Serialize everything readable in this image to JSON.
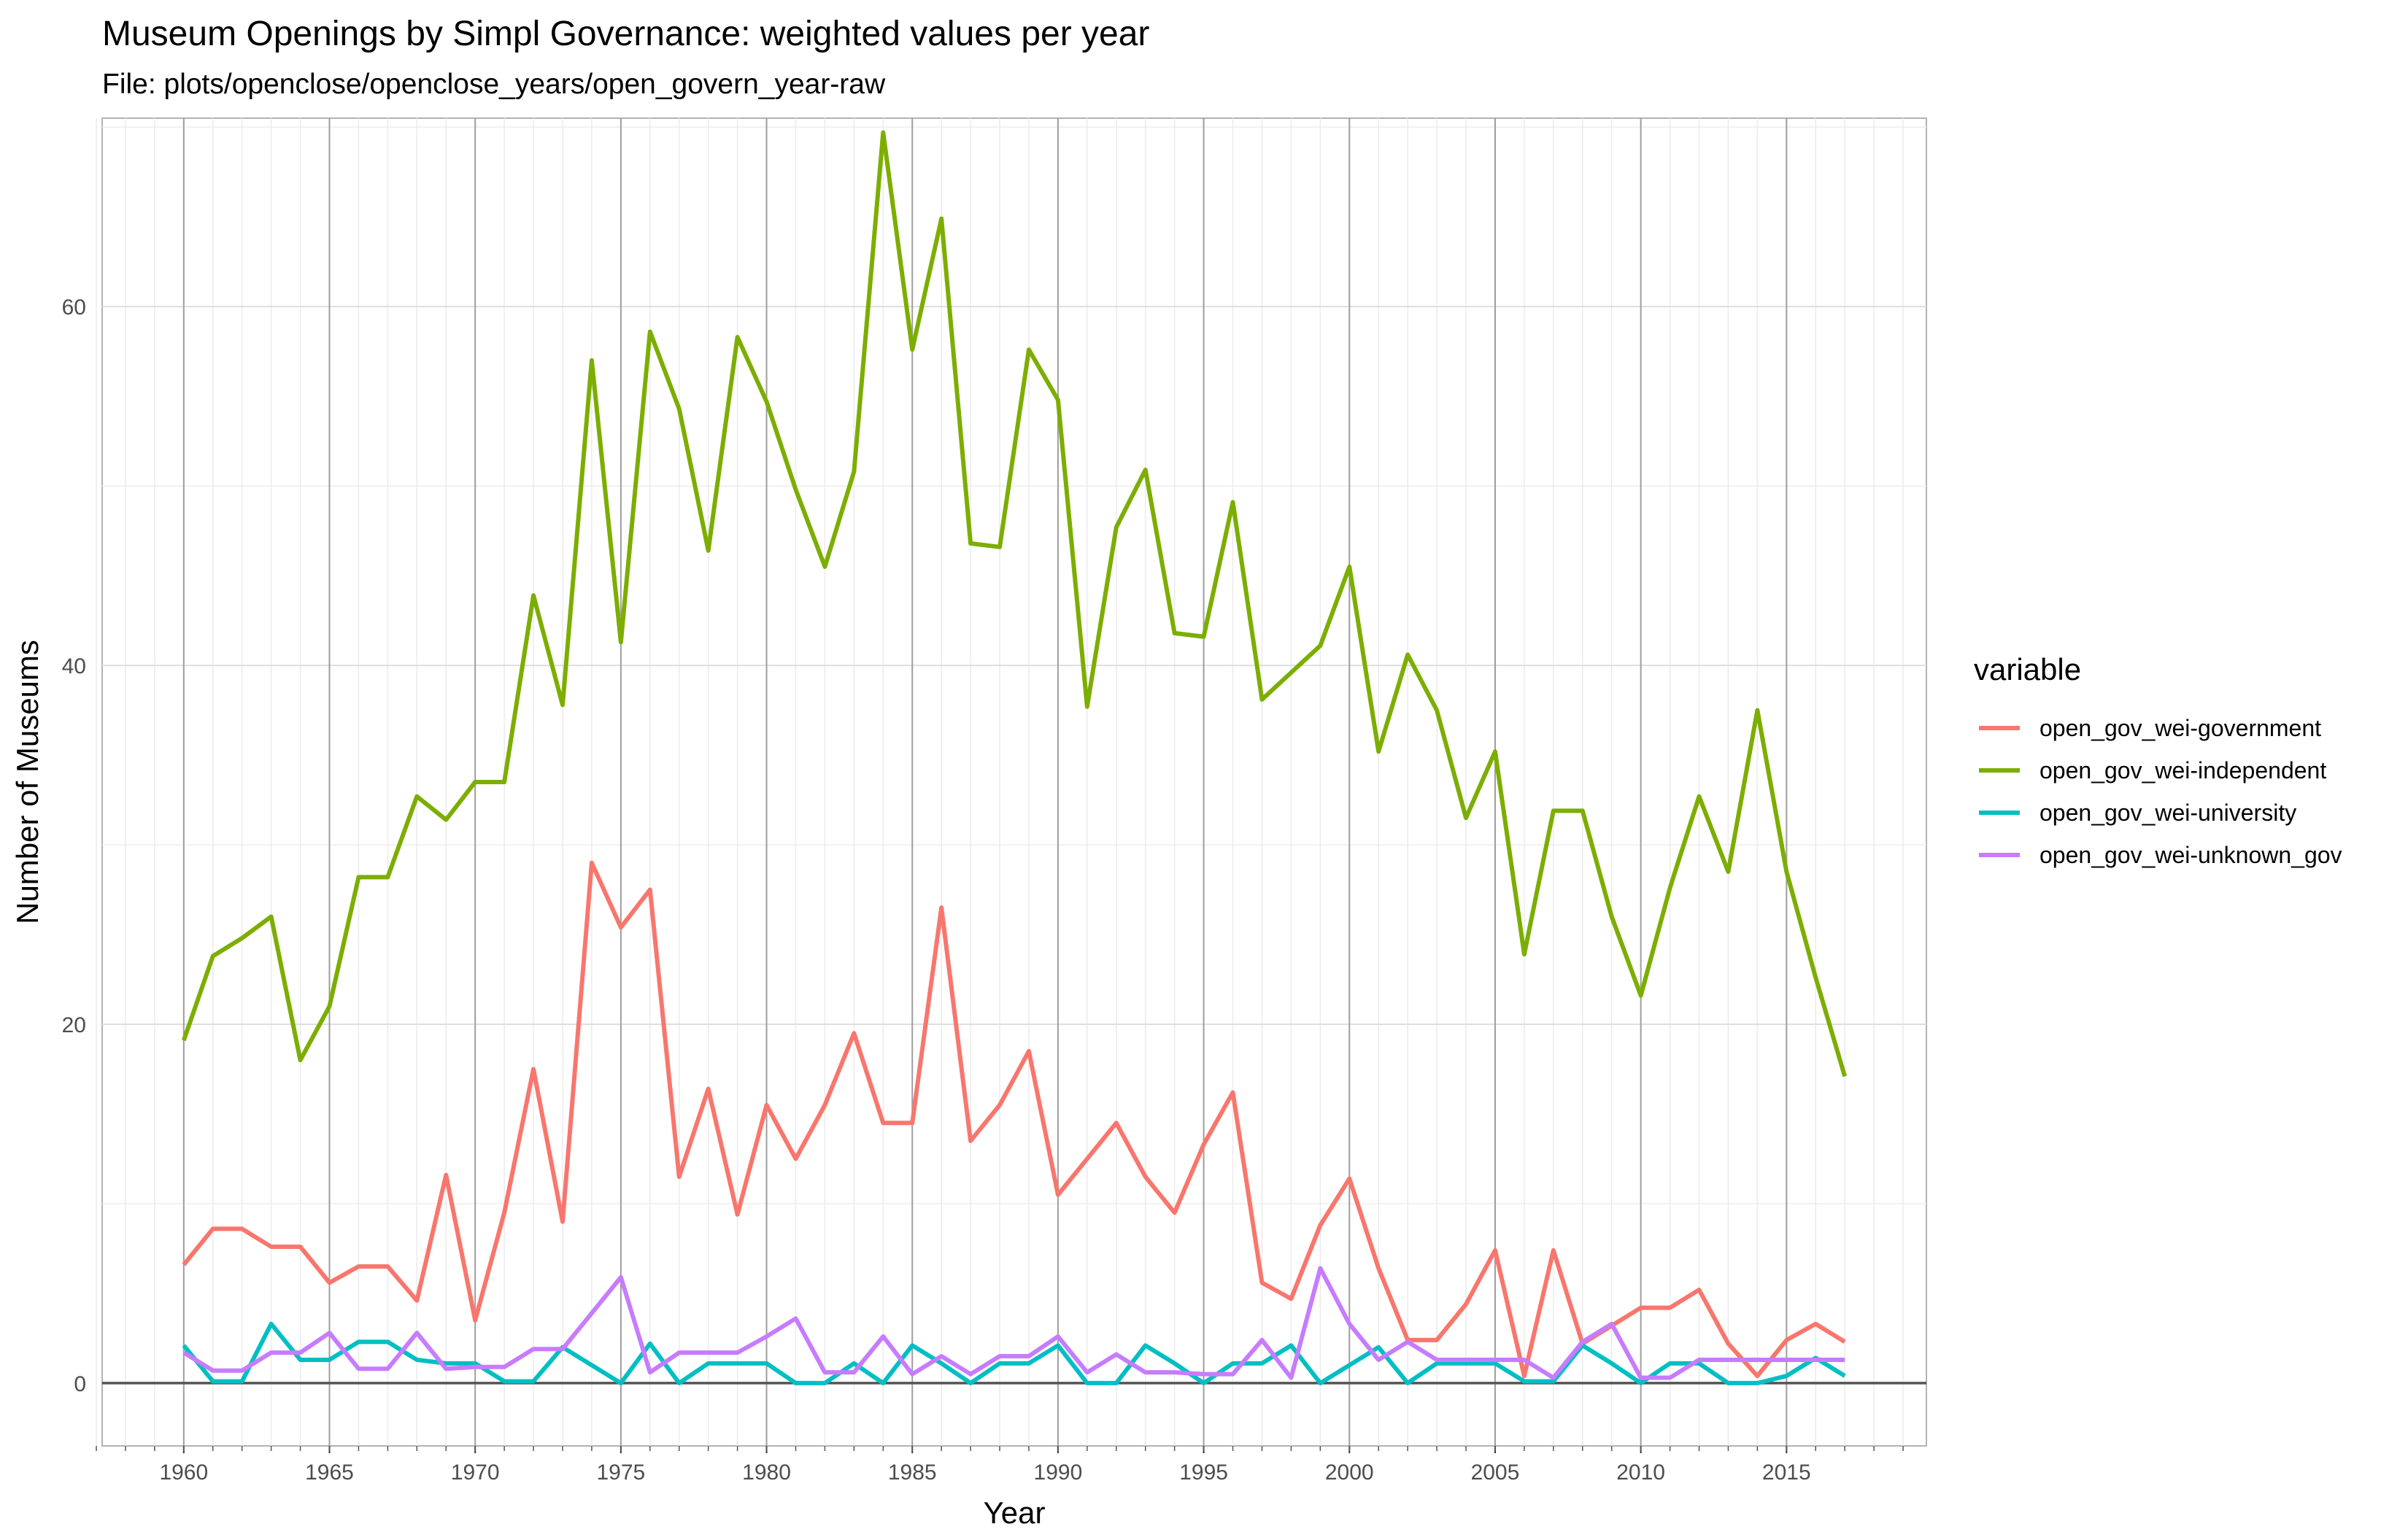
{
  "chart_data": {
    "type": "line",
    "title": "Museum Openings by Simpl Governance: weighted values per year",
    "subtitle": "File: plots/openclose/openclose_years/open_govern_year-raw",
    "xlabel": "Year",
    "ylabel": "Number of Museums",
    "xlim": [
      1957.2,
      2019.8
    ],
    "ylim": [
      -3.5,
      70.5
    ],
    "x_ticks": [
      1960,
      1965,
      1970,
      1975,
      1980,
      1985,
      1990,
      1995,
      2000,
      2005,
      2010,
      2015
    ],
    "x_minor_ticks": [
      1957,
      1958,
      1959,
      1960,
      1961,
      1962,
      1963,
      1964,
      1965,
      1966,
      1967,
      1968,
      1969,
      1970,
      1971,
      1972,
      1973,
      1974,
      1975,
      1976,
      1977,
      1978,
      1979,
      1980,
      1981,
      1982,
      1983,
      1984,
      1985,
      1986,
      1987,
      1988,
      1989,
      1990,
      1991,
      1992,
      1993,
      1994,
      1995,
      1996,
      1997,
      1998,
      1999,
      2000,
      2001,
      2002,
      2003,
      2004,
      2005,
      2006,
      2007,
      2008,
      2009,
      2010,
      2011,
      2012,
      2013,
      2014,
      2015,
      2016,
      2017,
      2018,
      2019
    ],
    "y_ticks": [
      0,
      20,
      40,
      60
    ],
    "y_minor_ticks": [
      10,
      30,
      50,
      70
    ],
    "grid": true,
    "legend_title": "variable",
    "legend_position": "right",
    "x": [
      1960,
      1961,
      1962,
      1963,
      1964,
      1965,
      1966,
      1967,
      1968,
      1969,
      1970,
      1971,
      1972,
      1973,
      1974,
      1975,
      1976,
      1977,
      1978,
      1979,
      1980,
      1981,
      1982,
      1983,
      1984,
      1985,
      1986,
      1987,
      1988,
      1989,
      1990,
      1991,
      1992,
      1993,
      1994,
      1995,
      1996,
      1997,
      1998,
      1999,
      2000,
      2001,
      2002,
      2003,
      2004,
      2005,
      2006,
      2007,
      2008,
      2009,
      2010,
      2011,
      2012,
      2013,
      2014,
      2015,
      2016,
      2017
    ],
    "series": [
      {
        "name": "open_gov_wei-government",
        "color": "#F8766D",
        "values": [
          6.6,
          8.6,
          8.6,
          7.6,
          7.6,
          5.6,
          6.5,
          6.5,
          4.6,
          11.6,
          3.5,
          9.5,
          17.5,
          9.0,
          29.0,
          25.4,
          27.5,
          11.5,
          16.4,
          9.4,
          15.5,
          12.5,
          15.5,
          19.5,
          14.5,
          14.5,
          26.5,
          13.5,
          15.5,
          18.5,
          10.5,
          12.5,
          14.5,
          11.5,
          9.5,
          13.3,
          16.2,
          5.6,
          4.7,
          8.8,
          11.4,
          6.4,
          2.4,
          2.4,
          4.4,
          7.4,
          0.4,
          7.4,
          2.2,
          3.2,
          4.2,
          4.2,
          5.2,
          2.2,
          0.4,
          2.4,
          3.3,
          2.3
        ]
      },
      {
        "name": "open_gov_wei-independent",
        "color": "#7CAE00",
        "values": [
          19.1,
          23.8,
          24.8,
          26.0,
          18.0,
          21.0,
          28.2,
          28.2,
          32.7,
          31.4,
          33.5,
          33.5,
          43.9,
          37.8,
          57.0,
          41.3,
          58.6,
          54.3,
          46.4,
          58.3,
          54.7,
          49.8,
          45.5,
          50.8,
          69.7,
          57.6,
          64.9,
          46.8,
          46.6,
          57.6,
          54.8,
          37.7,
          47.7,
          50.9,
          41.8,
          41.6,
          49.1,
          38.1,
          39.6,
          41.1,
          45.5,
          35.2,
          40.6,
          37.5,
          31.5,
          35.2,
          23.9,
          31.9,
          31.9,
          26.0,
          21.6,
          27.6,
          32.7,
          28.5,
          37.5,
          28.5,
          22.6,
          17.1
        ]
      },
      {
        "name": "open_gov_wei-university",
        "color": "#00BFC4",
        "values": [
          2.1,
          0.1,
          0.1,
          3.3,
          1.3,
          1.3,
          2.3,
          2.3,
          1.3,
          1.1,
          1.1,
          0.1,
          0.1,
          2.0,
          1.0,
          0.0,
          2.2,
          0.0,
          1.1,
          1.1,
          1.1,
          0.0,
          0.0,
          1.1,
          0.0,
          2.1,
          1.1,
          0.0,
          1.1,
          1.1,
          2.1,
          0.0,
          0.0,
          2.1,
          1.1,
          0.0,
          1.1,
          1.1,
          2.1,
          0.0,
          1.0,
          2.0,
          0.0,
          1.1,
          1.1,
          1.1,
          0.1,
          0.1,
          2.1,
          1.1,
          0.0,
          1.1,
          1.1,
          0.0,
          0.0,
          0.4,
          1.4,
          0.4
        ]
      },
      {
        "name": "open_gov_wei-unknown_gov",
        "color": "#C77CFF",
        "values": [
          1.7,
          0.7,
          0.7,
          1.7,
          1.7,
          2.8,
          0.8,
          0.8,
          2.8,
          0.8,
          0.9,
          0.9,
          1.9,
          1.9,
          3.9,
          5.9,
          0.6,
          1.7,
          1.7,
          1.7,
          2.6,
          3.6,
          0.6,
          0.6,
          2.6,
          0.5,
          1.5,
          0.5,
          1.5,
          1.5,
          2.6,
          0.6,
          1.6,
          0.6,
          0.6,
          0.5,
          0.5,
          2.4,
          0.3,
          6.4,
          3.3,
          1.3,
          2.3,
          1.3,
          1.3,
          1.3,
          1.3,
          0.3,
          2.3,
          3.3,
          0.3,
          0.3,
          1.3,
          1.3,
          1.3,
          1.3,
          1.3,
          1.3
        ]
      }
    ]
  }
}
